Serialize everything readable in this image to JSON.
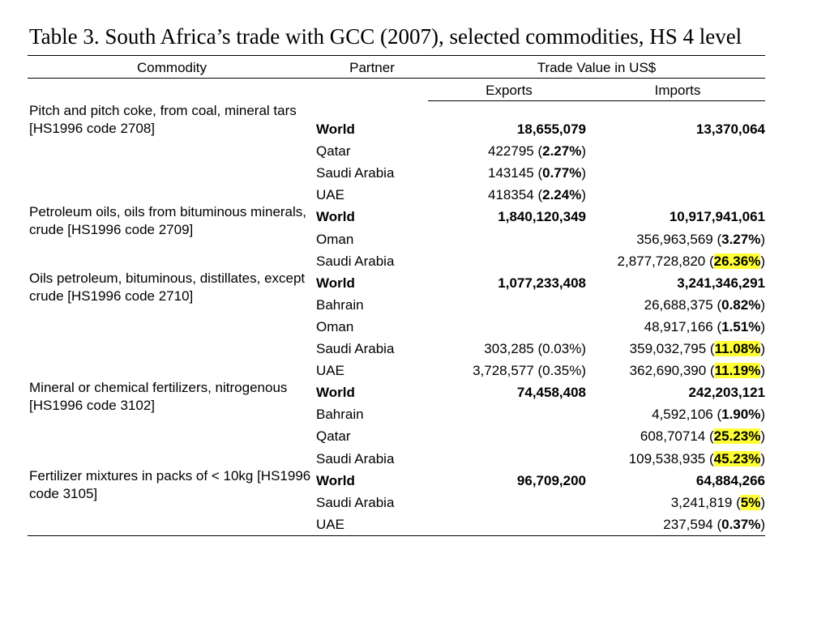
{
  "title": "Table 3. South Africa’s trade with GCC (2007), selected commodities, HS 4 level",
  "headers": {
    "commodity": "Commodity",
    "partner": "Partner",
    "trade_value": "Trade Value in US$",
    "exports": "Exports",
    "imports": "Imports"
  },
  "groups": [
    {
      "commodity": "Pitch and pitch coke, from coal, mineral tars [HS1996 code 2708]",
      "rows": [
        {
          "partner": "World",
          "bold": true,
          "exports": "18,655,079",
          "imports": "13,370,064"
        },
        {
          "partner": "Qatar",
          "exports": {
            "value": "422795",
            "pct": "2.27%"
          },
          "imports": null
        },
        {
          "partner": "Saudi Arabia",
          "exports": {
            "value": "143145",
            "pct": "0.77%"
          },
          "imports": null
        },
        {
          "partner": "UAE",
          "exports": {
            "value": "418354",
            "pct": "2.24%"
          },
          "imports": null
        }
      ]
    },
    {
      "commodity": "Petroleum oils, oils from bituminous minerals, crude [HS1996 code 2709]",
      "rows": [
        {
          "partner": "World",
          "bold": true,
          "exports": "1,840,120,349",
          "imports": "10,917,941,061"
        },
        {
          "partner": "Oman",
          "exports": null,
          "imports": {
            "value": "356,963,569",
            "pct": "3.27%"
          }
        },
        {
          "partner": "Saudi Arabia",
          "exports": null,
          "imports": {
            "value": "2,877,728,820",
            "pct": "26.36%",
            "highlight": true
          }
        }
      ]
    },
    {
      "commodity": "Oils petroleum, bituminous, distillates, except crude [HS1996 code 2710]",
      "rows": [
        {
          "partner": "World",
          "bold": true,
          "exports": "1,077,233,408",
          "imports": "3,241,346,291"
        },
        {
          "partner": "Bahrain",
          "exports": null,
          "imports": {
            "value": "26,688,375",
            "pct": "0.82%"
          }
        },
        {
          "partner": "Oman",
          "exports": null,
          "imports": {
            "value": "48,917,166",
            "pct": "1.51%"
          }
        },
        {
          "partner": "Saudi Arabia",
          "exports": {
            "value": "303,285",
            "pct": "0.03%",
            "plain": true
          },
          "imports": {
            "value": "359,032,795",
            "pct": "11.08%",
            "highlight": true
          }
        },
        {
          "partner": "UAE",
          "exports": {
            "value": "3,728,577",
            "pct": "0.35%",
            "plain": true
          },
          "imports": {
            "value": "362,690,390",
            "pct": "11.19%",
            "highlight": true
          }
        }
      ]
    },
    {
      "commodity": "Mineral or chemical fertilizers, nitrogenous [HS1996 code 3102]",
      "rows": [
        {
          "partner": "World",
          "bold": true,
          "exports": "74,458,408",
          "imports": "242,203,121"
        },
        {
          "partner": "Bahrain",
          "exports": null,
          "imports": {
            "value": "4,592,106",
            "pct": "1.90%"
          }
        },
        {
          "partner": "Qatar",
          "exports": null,
          "imports": {
            "value": "608,70714",
            "pct": "25.23%",
            "highlight": true
          }
        },
        {
          "partner": "Saudi Arabia",
          "exports": null,
          "imports": {
            "value": "109,538,935",
            "pct": "45.23%",
            "highlight": true
          }
        }
      ]
    },
    {
      "commodity": "Fertilizer mixtures in packs of < 10kg [HS1996 code 3105]",
      "rows": [
        {
          "partner": "World",
          "bold": true,
          "exports": "96,709,200",
          "imports": "64,884,266"
        },
        {
          "partner": "Saudi Arabia",
          "exports": null,
          "imports": {
            "value": "3,241,819",
            "pct": "5%",
            "highlight": true
          }
        },
        {
          "partner": "UAE",
          "exports": null,
          "imports": {
            "value": "237,594",
            "pct": "0.37%"
          }
        }
      ]
    }
  ],
  "colors": {
    "highlight": "#ffff33"
  }
}
